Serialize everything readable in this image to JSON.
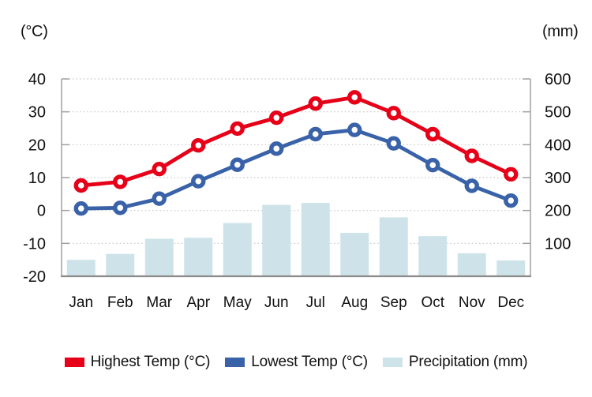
{
  "chart_data": {
    "type": "combo",
    "categories": [
      "Jan",
      "Feb",
      "Mar",
      "Apr",
      "May",
      "Jun",
      "Jul",
      "Aug",
      "Sep",
      "Oct",
      "Nov",
      "Dec"
    ],
    "series": [
      {
        "name": "Highest Temp (°C)",
        "type": "line",
        "axis": "left",
        "color": "#e60018",
        "marker": "open-circle",
        "values": [
          7.6,
          8.7,
          12.6,
          19.8,
          24.9,
          28.2,
          32.5,
          34.4,
          29.6,
          23.2,
          16.6,
          11.0
        ]
      },
      {
        "name": "Lowest Temp (°C)",
        "type": "line",
        "axis": "left",
        "color": "#3a62a8",
        "marker": "open-circle",
        "values": [
          0.6,
          0.8,
          3.6,
          8.9,
          13.9,
          18.8,
          23.2,
          24.5,
          20.4,
          13.8,
          7.5,
          3.0
        ]
      },
      {
        "name": "Precipitation (mm)",
        "type": "bar",
        "axis": "right",
        "color": "#cee3e9",
        "values": [
          50,
          68,
          114,
          117,
          162,
          217,
          223,
          132,
          179,
          122,
          70,
          48
        ]
      }
    ],
    "left_axis": {
      "unit": "(°C)",
      "range": [
        -20,
        40
      ],
      "ticks": [
        40,
        30,
        20,
        10,
        0,
        -10,
        -20
      ]
    },
    "right_axis": {
      "unit": "(mm)",
      "range": [
        0,
        600
      ],
      "ticks": [
        600,
        500,
        400,
        300,
        200,
        100
      ]
    },
    "grid": true,
    "legend_position": "bottom",
    "colors": {
      "grid": "#c8c8c8",
      "axis": "#a0a0a0",
      "baseline": "#8c8c8c",
      "text": "#111111",
      "background": "#ffffff"
    }
  }
}
